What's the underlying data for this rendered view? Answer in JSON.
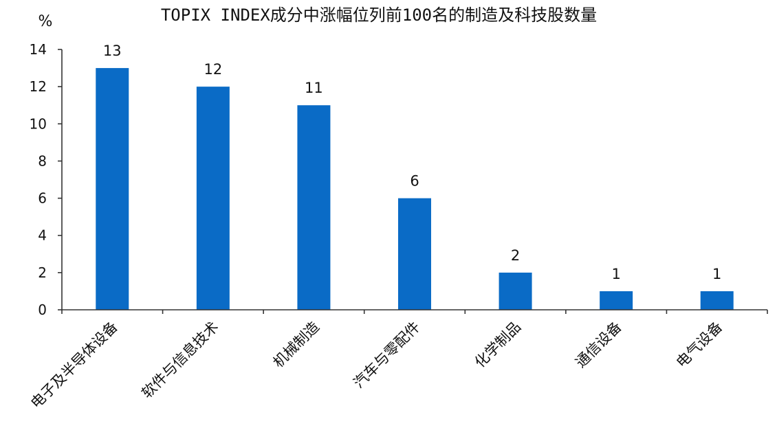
{
  "chart_data": {
    "type": "bar",
    "title": "TOPIX INDEX成分中涨幅位列前100名的制造及科技股数量",
    "ylabel": "%",
    "xlabel": "",
    "ylim": [
      0,
      14
    ],
    "yticks": [
      0,
      2,
      4,
      6,
      8,
      10,
      12,
      14
    ],
    "categories": [
      "电子及半导体设备",
      "软件与信息技术",
      "机械制造",
      "汽车与零配件",
      "化学制品",
      "通信设备",
      "电气设备"
    ],
    "values": [
      13,
      12,
      11,
      6,
      2,
      1,
      1
    ],
    "data_labels": [
      "13",
      "12",
      "11",
      "6",
      "2",
      "1",
      "1"
    ],
    "grid": false,
    "legend": "none",
    "bar_color": "#0a6bc6"
  }
}
